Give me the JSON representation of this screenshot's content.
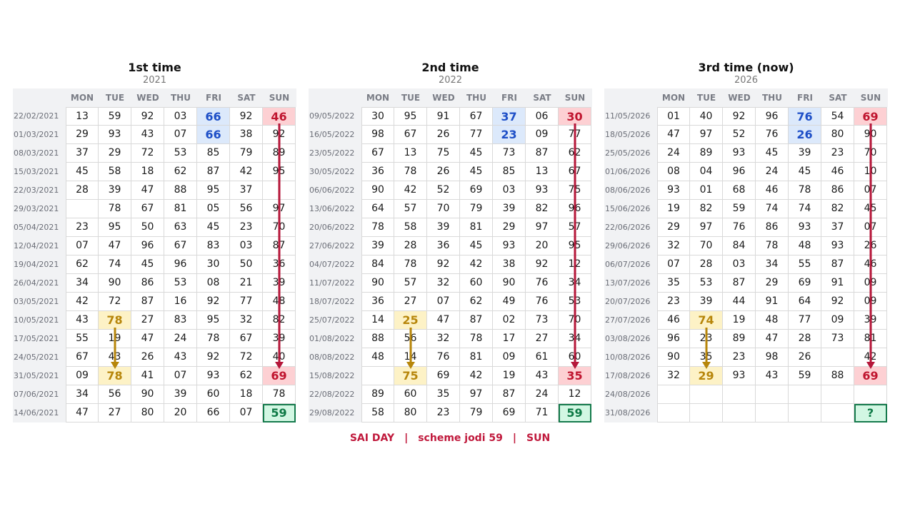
{
  "days": [
    "MON",
    "TUE",
    "WED",
    "THU",
    "FRI",
    "SAT",
    "SUN"
  ],
  "panels": [
    {
      "title": "1st time",
      "year": "2021",
      "rows": [
        {
          "date": "22/02/2021",
          "vals": [
            "13",
            "59",
            "92",
            "03",
            "66",
            "92",
            "46"
          ]
        },
        {
          "date": "01/03/2021",
          "vals": [
            "29",
            "93",
            "43",
            "07",
            "66",
            "38",
            "92"
          ]
        },
        {
          "date": "08/03/2021",
          "vals": [
            "37",
            "29",
            "72",
            "53",
            "85",
            "79",
            "89"
          ]
        },
        {
          "date": "15/03/2021",
          "vals": [
            "45",
            "58",
            "18",
            "62",
            "87",
            "42",
            "95"
          ]
        },
        {
          "date": "22/03/2021",
          "vals": [
            "28",
            "39",
            "47",
            "88",
            "95",
            "37",
            ""
          ]
        },
        {
          "date": "29/03/2021",
          "vals": [
            "",
            "78",
            "67",
            "81",
            "05",
            "56",
            "97"
          ]
        },
        {
          "date": "05/04/2021",
          "vals": [
            "23",
            "95",
            "50",
            "63",
            "45",
            "23",
            "70"
          ]
        },
        {
          "date": "12/04/2021",
          "vals": [
            "07",
            "47",
            "96",
            "67",
            "83",
            "03",
            "87"
          ]
        },
        {
          "date": "19/04/2021",
          "vals": [
            "62",
            "74",
            "45",
            "96",
            "30",
            "50",
            "36"
          ]
        },
        {
          "date": "26/04/2021",
          "vals": [
            "34",
            "90",
            "86",
            "53",
            "08",
            "21",
            "39"
          ]
        },
        {
          "date": "03/05/2021",
          "vals": [
            "42",
            "72",
            "87",
            "16",
            "92",
            "77",
            "48"
          ]
        },
        {
          "date": "10/05/2021",
          "vals": [
            "43",
            "78",
            "27",
            "83",
            "95",
            "32",
            "82"
          ]
        },
        {
          "date": "17/05/2021",
          "vals": [
            "55",
            "19",
            "47",
            "24",
            "78",
            "67",
            "39"
          ]
        },
        {
          "date": "24/05/2021",
          "vals": [
            "67",
            "43",
            "26",
            "43",
            "92",
            "72",
            "40"
          ]
        },
        {
          "date": "31/05/2021",
          "vals": [
            "09",
            "78",
            "41",
            "07",
            "93",
            "62",
            "69"
          ]
        },
        {
          "date": "07/06/2021",
          "vals": [
            "34",
            "56",
            "90",
            "39",
            "60",
            "18",
            "78"
          ]
        },
        {
          "date": "14/06/2021",
          "vals": [
            "47",
            "27",
            "80",
            "20",
            "66",
            "07",
            "59"
          ]
        }
      ],
      "highlights": [
        {
          "r": 0,
          "c": 4,
          "t": "blue"
        },
        {
          "r": 1,
          "c": 4,
          "t": "blue"
        },
        {
          "r": 0,
          "c": 6,
          "t": "red"
        },
        {
          "r": 14,
          "c": 6,
          "t": "red"
        },
        {
          "r": 11,
          "c": 1,
          "t": "gold"
        },
        {
          "r": 14,
          "c": 1,
          "t": "gold"
        },
        {
          "r": 16,
          "c": 6,
          "t": "green"
        }
      ]
    },
    {
      "title": "2nd time",
      "year": "2022",
      "rows": [
        {
          "date": "09/05/2022",
          "vals": [
            "30",
            "95",
            "91",
            "67",
            "37",
            "06",
            "30"
          ]
        },
        {
          "date": "16/05/2022",
          "vals": [
            "98",
            "67",
            "26",
            "77",
            "23",
            "09",
            "77"
          ]
        },
        {
          "date": "23/05/2022",
          "vals": [
            "67",
            "13",
            "75",
            "45",
            "73",
            "87",
            "62"
          ]
        },
        {
          "date": "30/05/2022",
          "vals": [
            "36",
            "78",
            "26",
            "45",
            "85",
            "13",
            "67"
          ]
        },
        {
          "date": "06/06/2022",
          "vals": [
            "90",
            "42",
            "52",
            "69",
            "03",
            "93",
            "75"
          ]
        },
        {
          "date": "13/06/2022",
          "vals": [
            "64",
            "57",
            "70",
            "79",
            "39",
            "82",
            "96"
          ]
        },
        {
          "date": "20/06/2022",
          "vals": [
            "78",
            "58",
            "39",
            "81",
            "29",
            "97",
            "57"
          ]
        },
        {
          "date": "27/06/2022",
          "vals": [
            "39",
            "28",
            "36",
            "45",
            "93",
            "20",
            "95"
          ]
        },
        {
          "date": "04/07/2022",
          "vals": [
            "84",
            "78",
            "92",
            "42",
            "38",
            "92",
            "12"
          ]
        },
        {
          "date": "11/07/2022",
          "vals": [
            "90",
            "57",
            "32",
            "60",
            "90",
            "76",
            "34"
          ]
        },
        {
          "date": "18/07/2022",
          "vals": [
            "36",
            "27",
            "07",
            "62",
            "49",
            "76",
            "53"
          ]
        },
        {
          "date": "25/07/2022",
          "vals": [
            "14",
            "25",
            "47",
            "87",
            "02",
            "73",
            "70"
          ]
        },
        {
          "date": "01/08/2022",
          "vals": [
            "88",
            "56",
            "32",
            "78",
            "17",
            "27",
            "34"
          ]
        },
        {
          "date": "08/08/2022",
          "vals": [
            "48",
            "14",
            "76",
            "81",
            "09",
            "61",
            "60"
          ]
        },
        {
          "date": "15/08/2022",
          "vals": [
            "",
            "75",
            "69",
            "42",
            "19",
            "43",
            "35"
          ]
        },
        {
          "date": "22/08/2022",
          "vals": [
            "89",
            "60",
            "35",
            "97",
            "87",
            "24",
            "12"
          ]
        },
        {
          "date": "29/08/2022",
          "vals": [
            "58",
            "80",
            "23",
            "79",
            "69",
            "71",
            "59"
          ]
        }
      ],
      "highlights": [
        {
          "r": 0,
          "c": 4,
          "t": "blue"
        },
        {
          "r": 1,
          "c": 4,
          "t": "blue"
        },
        {
          "r": 0,
          "c": 6,
          "t": "red"
        },
        {
          "r": 14,
          "c": 6,
          "t": "red"
        },
        {
          "r": 11,
          "c": 1,
          "t": "gold"
        },
        {
          "r": 14,
          "c": 1,
          "t": "gold"
        },
        {
          "r": 16,
          "c": 6,
          "t": "green"
        }
      ]
    },
    {
      "title": "3rd time  (now)",
      "year": "2026",
      "rows": [
        {
          "date": "11/05/2026",
          "vals": [
            "01",
            "40",
            "92",
            "96",
            "76",
            "54",
            "69"
          ]
        },
        {
          "date": "18/05/2026",
          "vals": [
            "47",
            "97",
            "52",
            "76",
            "26",
            "80",
            "90"
          ]
        },
        {
          "date": "25/05/2026",
          "vals": [
            "24",
            "89",
            "93",
            "45",
            "39",
            "23",
            "70"
          ]
        },
        {
          "date": "01/06/2026",
          "vals": [
            "08",
            "04",
            "96",
            "24",
            "45",
            "46",
            "10"
          ]
        },
        {
          "date": "08/06/2026",
          "vals": [
            "93",
            "01",
            "68",
            "46",
            "78",
            "86",
            "07"
          ]
        },
        {
          "date": "15/06/2026",
          "vals": [
            "19",
            "82",
            "59",
            "74",
            "74",
            "82",
            "45"
          ]
        },
        {
          "date": "22/06/2026",
          "vals": [
            "29",
            "97",
            "76",
            "86",
            "93",
            "37",
            "07"
          ]
        },
        {
          "date": "29/06/2026",
          "vals": [
            "32",
            "70",
            "84",
            "78",
            "48",
            "93",
            "26"
          ]
        },
        {
          "date": "06/07/2026",
          "vals": [
            "07",
            "28",
            "03",
            "34",
            "55",
            "87",
            "46"
          ]
        },
        {
          "date": "13/07/2026",
          "vals": [
            "35",
            "53",
            "87",
            "29",
            "69",
            "91",
            "09"
          ]
        },
        {
          "date": "20/07/2026",
          "vals": [
            "23",
            "39",
            "44",
            "91",
            "64",
            "92",
            "09"
          ]
        },
        {
          "date": "27/07/2026",
          "vals": [
            "46",
            "74",
            "19",
            "48",
            "77",
            "09",
            "39"
          ]
        },
        {
          "date": "03/08/2026",
          "vals": [
            "96",
            "23",
            "89",
            "47",
            "28",
            "73",
            "81"
          ]
        },
        {
          "date": "10/08/2026",
          "vals": [
            "90",
            "35",
            "23",
            "98",
            "26",
            "",
            "42"
          ]
        },
        {
          "date": "17/08/2026",
          "vals": [
            "32",
            "29",
            "93",
            "43",
            "59",
            "88",
            "69"
          ]
        },
        {
          "date": "24/08/2026",
          "vals": [
            "",
            "",
            "",
            "",
            "",
            "",
            ""
          ]
        },
        {
          "date": "31/08/2026",
          "vals": [
            "",
            "",
            "",
            "",
            "",
            "",
            "?"
          ]
        }
      ],
      "highlights": [
        {
          "r": 0,
          "c": 4,
          "t": "blue"
        },
        {
          "r": 1,
          "c": 4,
          "t": "blue"
        },
        {
          "r": 0,
          "c": 6,
          "t": "red"
        },
        {
          "r": 14,
          "c": 6,
          "t": "red"
        },
        {
          "r": 11,
          "c": 1,
          "t": "gold"
        },
        {
          "r": 14,
          "c": 1,
          "t": "gold"
        },
        {
          "r": 16,
          "c": 6,
          "t": "green"
        }
      ]
    }
  ],
  "arrow_colors": {
    "red": "#b5173a",
    "gold": "#b7860b"
  },
  "footer": {
    "part1": "SAI DAY",
    "sep": "|",
    "part2": "scheme jodi 59",
    "part3": "SUN"
  }
}
